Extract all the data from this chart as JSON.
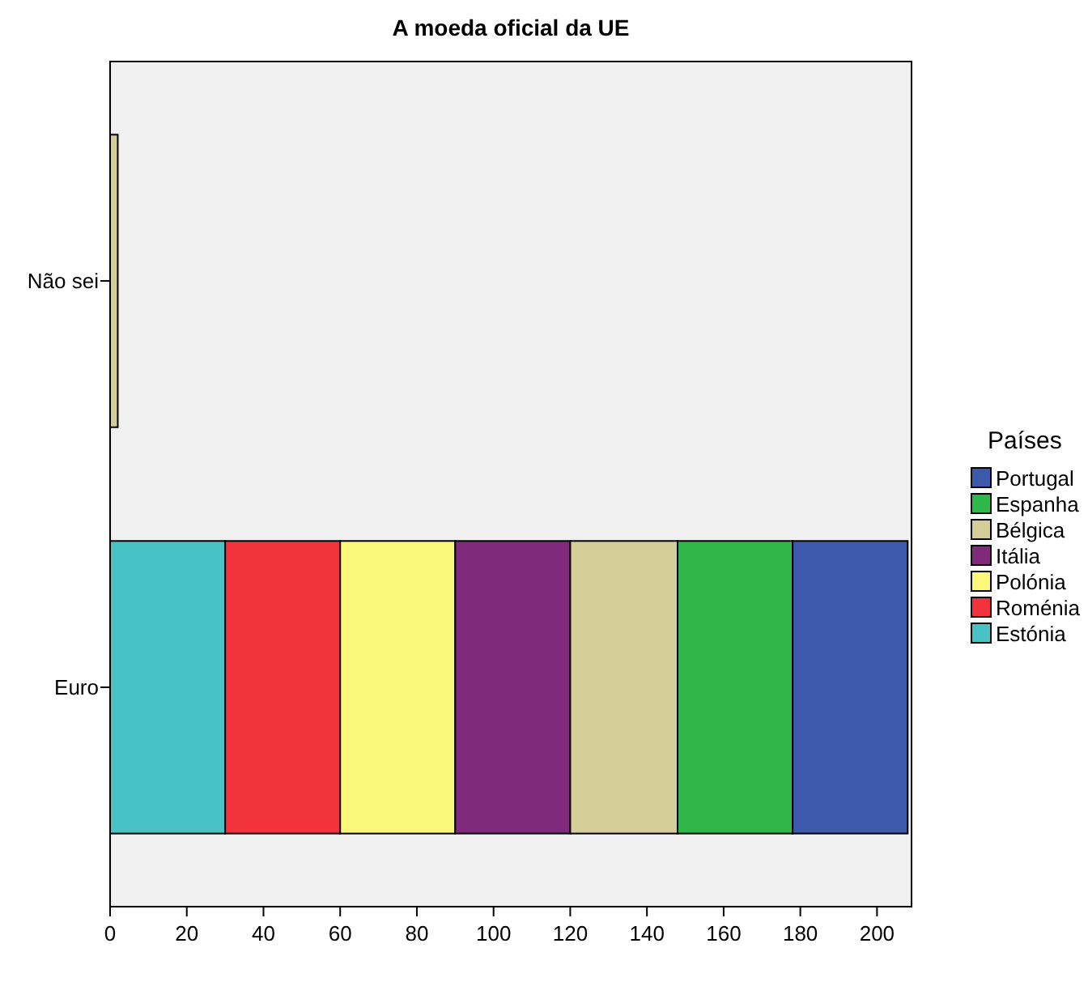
{
  "chart_data": {
    "type": "bar",
    "orientation": "horizontal",
    "stacked": true,
    "title": "A moeda oficial da UE",
    "legend_title": "Países",
    "legend": "right",
    "categories": [
      "Não sei",
      "Euro"
    ],
    "xlim": [
      0,
      209
    ],
    "xticks": [
      0,
      20,
      40,
      60,
      80,
      100,
      120,
      140,
      160,
      180,
      200
    ],
    "series": [
      {
        "name": "Estónia",
        "color": "#48c2c5",
        "values": [
          0,
          30
        ]
      },
      {
        "name": "Roménia",
        "color": "#f2323c",
        "values": [
          0,
          30
        ]
      },
      {
        "name": "Polónia",
        "color": "#fbf779",
        "values": [
          0,
          30
        ]
      },
      {
        "name": "Itália",
        "color": "#7f2a7a",
        "values": [
          0,
          30
        ]
      },
      {
        "name": "Bélgica",
        "color": "#d4cd97",
        "values": [
          2,
          28
        ]
      },
      {
        "name": "Espanha",
        "color": "#2fb74a",
        "values": [
          0,
          30
        ]
      },
      {
        "name": "Portugal",
        "color": "#3d59ab",
        "values": [
          0,
          30
        ]
      }
    ]
  }
}
